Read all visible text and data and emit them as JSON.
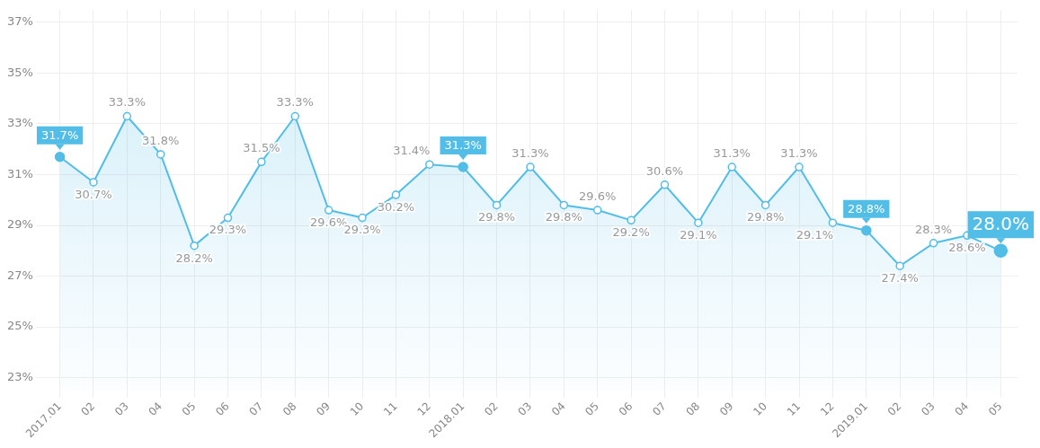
{
  "chart_data": {
    "type": "area",
    "categories": [
      "2017.01",
      "02",
      "03",
      "04",
      "05",
      "06",
      "07",
      "08",
      "09",
      "10",
      "11",
      "12",
      "2018.01",
      "02",
      "03",
      "04",
      "05",
      "06",
      "07",
      "08",
      "09",
      "10",
      "11",
      "12",
      "2019.01",
      "02",
      "03",
      "04",
      "05"
    ],
    "series": [
      {
        "color": "#52bde6",
        "values": [
          31.7,
          30.7,
          33.3,
          31.8,
          28.2,
          29.3,
          31.5,
          33.3,
          29.6,
          29.3,
          30.2,
          31.4,
          31.3,
          29.8,
          31.3,
          29.8,
          29.6,
          29.2,
          30.6,
          29.1,
          31.3,
          29.8,
          31.3,
          29.1,
          28.8,
          27.4,
          28.3,
          28.6,
          28.0
        ],
        "value_labels": [
          "31.7%",
          "30.7%",
          "33.3%",
          "31.8%",
          "28.2%",
          "29.3%",
          "31.5%",
          "33.3%",
          "29.6%",
          "29.3%",
          "30.2%",
          "31.4%",
          "31.3%",
          "29.8%",
          "31.3%",
          "29.8%",
          "29.6%",
          "29.2%",
          "30.6%",
          "29.1%",
          "31.3%",
          "29.8%",
          "31.3%",
          "29.1%",
          "28.8%",
          "27.4%",
          "28.3%",
          "28.6%",
          "28.0%"
        ],
        "colors": [
          "#52bde6",
          "#ffffff",
          "#ffffff",
          "#ffffff",
          "#ffffff",
          "#ffffff",
          "#ffffff",
          "#ffffff",
          "#ffffff",
          "#ffffff",
          "#ffffff",
          "#ffffff",
          "#52bde6",
          "#ffffff",
          "#ffffff",
          "#ffffff",
          "#ffffff",
          "#ffffff",
          "#ffffff",
          "#ffffff",
          "#ffffff",
          "#ffffff",
          "#ffffff",
          "#ffffff",
          "#52bde6",
          "#ffffff",
          "#ffffff",
          "#ffffff",
          "#52bde6"
        ]
      }
    ],
    "ylim": [
      22.5,
      37.5
    ],
    "yticks": [
      {
        "value": 23,
        "label": "23%"
      },
      {
        "value": 25,
        "label": "25%"
      },
      {
        "value": 27,
        "label": "27%"
      },
      {
        "value": 29,
        "label": "29%"
      },
      {
        "value": 31,
        "label": "31%"
      },
      {
        "value": 33,
        "label": "33%"
      },
      {
        "value": 35,
        "label": "35%"
      },
      {
        "value": 37,
        "label": "37%"
      }
    ],
    "grid": true,
    "marker": "circle"
  }
}
